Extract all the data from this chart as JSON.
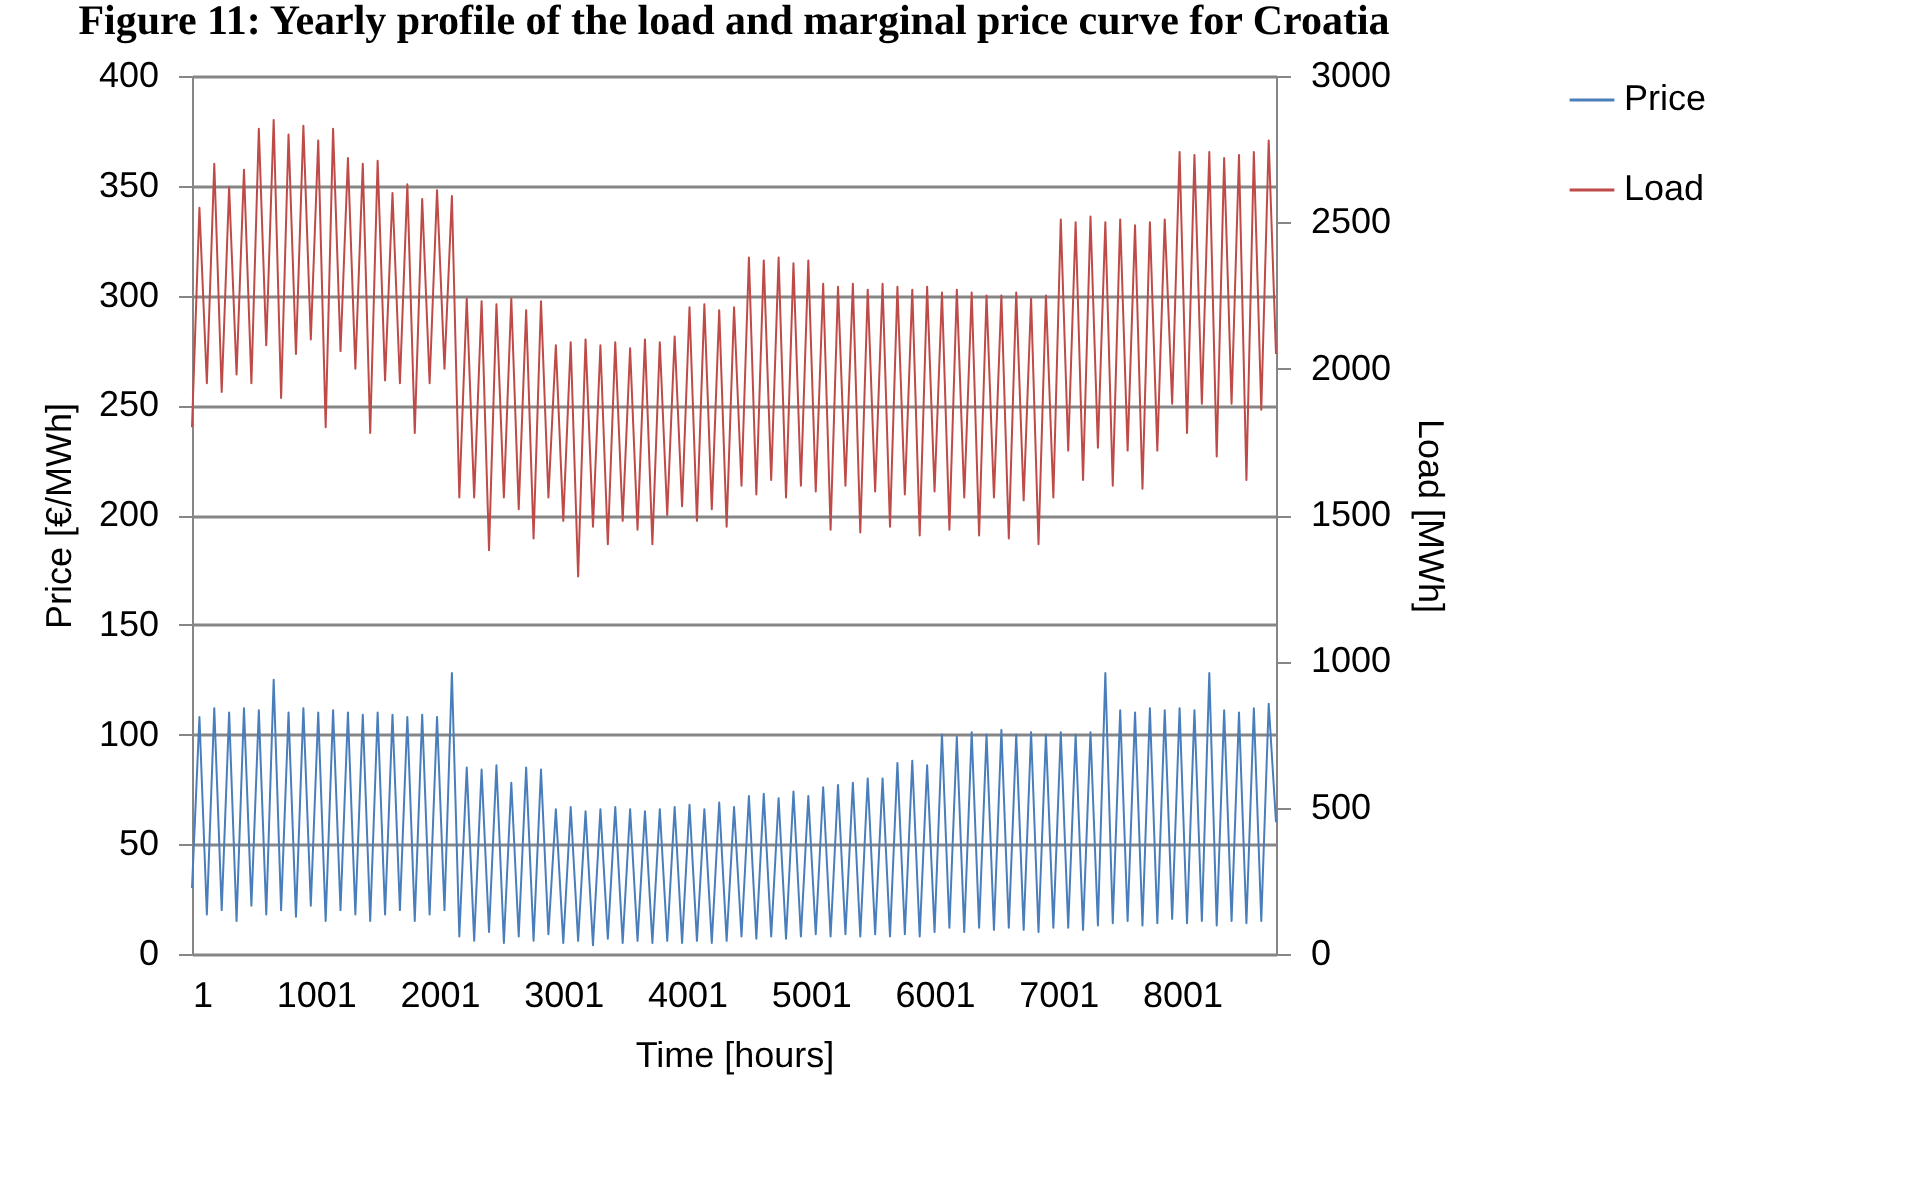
{
  "chart_data": {
    "type": "line",
    "title": "Figure 11: Yearly profile of the load and marginal price curve for Croatia",
    "xlabel": "Time [hours]",
    "ylabel": "Price [€/MWh]",
    "y2label": "Load [MWh]",
    "x": [
      1,
      61,
      121,
      181,
      241,
      301,
      361,
      421,
      481,
      541,
      601,
      661,
      721,
      781,
      841,
      901,
      961,
      1021,
      1081,
      1141,
      1201,
      1261,
      1321,
      1381,
      1441,
      1501,
      1561,
      1621,
      1681,
      1741,
      1801,
      1861,
      1921,
      1981,
      2041,
      2101,
      2161,
      2221,
      2281,
      2341,
      2401,
      2461,
      2521,
      2581,
      2641,
      2701,
      2761,
      2821,
      2881,
      2941,
      3001,
      3061,
      3121,
      3181,
      3241,
      3301,
      3361,
      3421,
      3481,
      3541,
      3601,
      3661,
      3721,
      3781,
      3841,
      3901,
      3961,
      4021,
      4081,
      4141,
      4201,
      4261,
      4321,
      4381,
      4441,
      4501,
      4561,
      4621,
      4681,
      4741,
      4801,
      4861,
      4921,
      4981,
      5041,
      5101,
      5161,
      5221,
      5281,
      5341,
      5401,
      5461,
      5521,
      5581,
      5641,
      5701,
      5761,
      5821,
      5881,
      5941,
      6001,
      6061,
      6121,
      6181,
      6241,
      6301,
      6361,
      6421,
      6481,
      6541,
      6601,
      6661,
      6721,
      6781,
      6841,
      6901,
      6961,
      7021,
      7081,
      7141,
      7201,
      7261,
      7321,
      7381,
      7441,
      7501,
      7561,
      7621,
      7681,
      7741,
      7801,
      7861,
      7921,
      7981,
      8041,
      8101,
      8161,
      8221,
      8281,
      8341,
      8401,
      8461,
      8521,
      8581,
      8641,
      8701,
      8760
    ],
    "series": [
      {
        "name": "Price",
        "color": "#4a7ebb",
        "values": [
          30,
          108,
          18,
          112,
          20,
          110,
          15,
          112,
          22,
          111,
          18,
          125,
          20,
          110,
          17,
          112,
          22,
          110,
          15,
          111,
          20,
          110,
          18,
          109,
          15,
          110,
          18,
          109,
          20,
          108,
          15,
          109,
          18,
          108,
          20,
          128,
          8,
          85,
          6,
          84,
          10,
          86,
          5,
          78,
          8,
          85,
          6,
          84,
          9,
          66,
          5,
          67,
          6,
          65,
          4,
          66,
          7,
          67,
          5,
          66,
          6,
          65,
          5,
          66,
          6,
          67,
          5,
          68,
          6,
          66,
          5,
          69,
          6,
          67,
          8,
          72,
          7,
          73,
          8,
          71,
          7,
          74,
          8,
          72,
          9,
          76,
          8,
          77,
          9,
          78,
          8,
          80,
          9,
          80,
          8,
          87,
          9,
          88,
          8,
          86,
          10,
          100,
          12,
          99,
          10,
          101,
          12,
          100,
          11,
          102,
          12,
          100,
          11,
          101,
          10,
          100,
          12,
          101,
          12,
          100,
          11,
          101,
          13,
          128,
          14,
          111,
          15,
          110,
          13,
          112,
          14,
          111,
          16,
          112,
          14,
          111,
          15,
          128,
          13,
          111,
          15,
          110,
          14,
          112,
          15,
          114,
          60
        ]
      },
      {
        "name": "Load",
        "color": "#be4b48",
        "axis": "y2",
        "values": [
          1800,
          2550,
          1950,
          2700,
          1920,
          2620,
          1980,
          2680,
          1950,
          2820,
          2080,
          2850,
          1900,
          2800,
          2050,
          2830,
          2100,
          2780,
          1800,
          2820,
          2060,
          2720,
          2000,
          2700,
          1780,
          2710,
          1960,
          2600,
          1950,
          2630,
          1780,
          2580,
          1950,
          2610,
          2000,
          2590,
          1560,
          2240,
          1560,
          2230,
          1380,
          2220,
          1560,
          2240,
          1520,
          2200,
          1420,
          2230,
          1560,
          2080,
          1480,
          2090,
          1290,
          2100,
          1460,
          2080,
          1400,
          2090,
          1480,
          2070,
          1450,
          2100,
          1400,
          2090,
          1500,
          2110,
          1530,
          2210,
          1480,
          2220,
          1520,
          2200,
          1460,
          2210,
          1600,
          2380,
          1570,
          2370,
          1620,
          2380,
          1560,
          2360,
          1600,
          2370,
          1580,
          2290,
          1450,
          2280,
          1600,
          2290,
          1440,
          2270,
          1580,
          2290,
          1460,
          2280,
          1570,
          2270,
          1430,
          2280,
          1580,
          2260,
          1450,
          2270,
          1560,
          2260,
          1430,
          2250,
          1560,
          2250,
          1420,
          2260,
          1550,
          2240,
          1400,
          2250,
          1560,
          2510,
          1720,
          2500,
          1620,
          2520,
          1730,
          2500,
          1600,
          2510,
          1720,
          2490,
          1590,
          2500,
          1720,
          2510,
          1880,
          2740,
          1780,
          2730,
          1880,
          2740,
          1700,
          2720,
          1880,
          2730,
          1620,
          2740,
          1860,
          2780,
          2050
        ]
      }
    ],
    "xlim": [
      1,
      8760
    ],
    "xticks": [
      1,
      1001,
      2001,
      3001,
      4001,
      5001,
      6001,
      7001,
      8001
    ],
    "ylim": [
      0,
      400
    ],
    "yticks": [
      0,
      50,
      100,
      150,
      200,
      250,
      300,
      350,
      400
    ],
    "y2lim": [
      0,
      3000
    ],
    "y2ticks": [
      0,
      500,
      1000,
      1500,
      2000,
      2500,
      3000
    ],
    "grid": "y",
    "legend": "right",
    "marker": "none",
    "line_style": "solid"
  }
}
